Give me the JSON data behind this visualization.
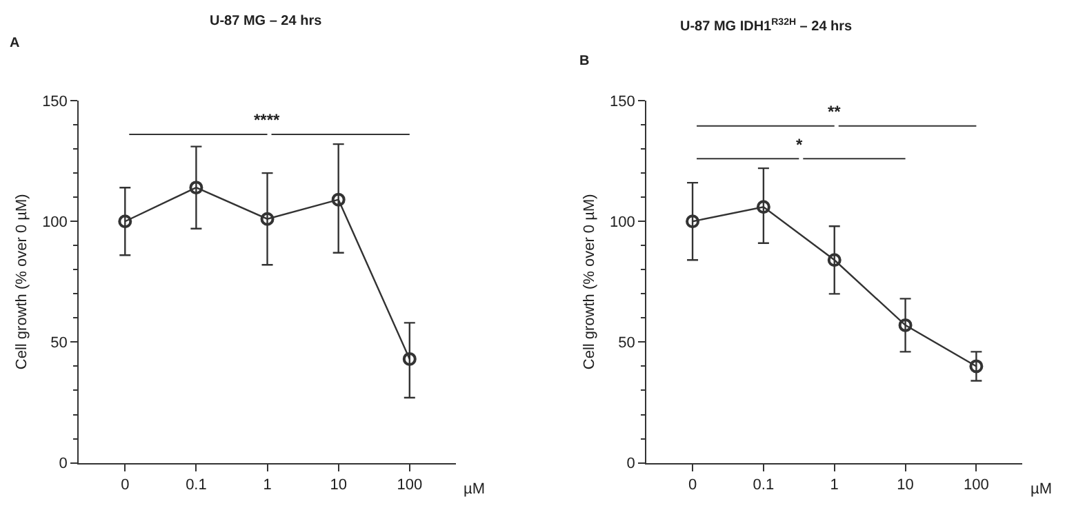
{
  "chart_data": [
    {
      "type": "line",
      "title": "U-87 MG – 24 hrs",
      "xlabel": "µM",
      "ylabel": "Cell growth (% over 0 µM)",
      "categories": [
        "0",
        "0.1",
        "1",
        "10",
        "100"
      ],
      "series": [
        {
          "color": "#333333",
          "values": [
            100,
            114,
            101,
            109,
            43
          ],
          "errors": [
            [
              86,
              114
            ],
            [
              97,
              131
            ],
            [
              82,
              120
            ],
            [
              87,
              132
            ],
            [
              27,
              58
            ]
          ]
        }
      ],
      "ylim": [
        0,
        150
      ],
      "yticks": [
        0,
        50,
        100,
        150
      ],
      "marker": "circle",
      "line_style": "solid",
      "annotations": [
        "A",
        "****"
      ]
    },
    {
      "type": "line",
      "title": "U-87 MG IDH1$^{R32H}$ – 24 hrs",
      "xlabel": "µM",
      "ylabel": "Cell growth (% over 0 µM)",
      "categories": [
        "0",
        "0.1",
        "1",
        "10",
        "100"
      ],
      "series": [
        {
          "color": "#333333",
          "values": [
            100,
            106,
            84,
            57,
            40
          ],
          "errors": [
            [
              84,
              116
            ],
            [
              91,
              122
            ],
            [
              70,
              98
            ],
            [
              46,
              68
            ],
            [
              34,
              46
            ]
          ]
        }
      ],
      "ylim": [
        0,
        150
      ],
      "yticks": [
        0,
        50,
        100,
        150
      ],
      "marker": "circle",
      "line_style": "solid",
      "annotations": [
        "B",
        "**",
        "*"
      ]
    }
  ]
}
